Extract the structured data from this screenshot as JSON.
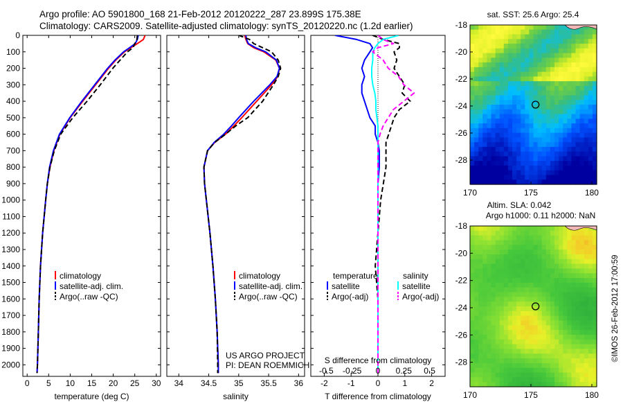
{
  "header": {
    "line1": "Argo profile: AO 5901800_168 21-Feb-2012 20120222_287 23.899S 175.38E",
    "line2": "Climatology: CARS2009. Satellite-adjusted climatology: synTS_20120220.nc (1.2d earlier)"
  },
  "credits": {
    "project": "US ARGO PROJECT",
    "pi": "PI: DEAN ROEMMICH",
    "stamp": "©IMOS 26-Feb-2012 17:00:59"
  },
  "colors": {
    "climatology": "#ff0000",
    "satellite": "#0000ff",
    "argo": "#000000",
    "sal_satellite": "#00ffff",
    "sal_argo": "#ff00ff"
  },
  "chart_data": [
    {
      "type": "line",
      "name": "temperature-profile",
      "xlabel": "temperature (deg C)",
      "ylabel": "",
      "xlim": [
        -1,
        31
      ],
      "ylim": [
        2070,
        0
      ],
      "xticks": [
        "0",
        "5",
        "10",
        "15",
        "20",
        "25",
        "30"
      ],
      "yticks": [
        "0",
        "100",
        "200",
        "300",
        "400",
        "500",
        "600",
        "700",
        "800",
        "900",
        "1000",
        "1100",
        "1200",
        "1300",
        "1400",
        "1500",
        "1600",
        "1700",
        "1800",
        "1900",
        "2000"
      ],
      "legend": [
        "climatology",
        "satellite-adj. clim.",
        "Argo(..raw -QC)"
      ],
      "depth": [
        0,
        25,
        50,
        75,
        100,
        150,
        200,
        300,
        400,
        500,
        600,
        700,
        800,
        900,
        1000,
        1200,
        1400,
        1600,
        1800,
        2000,
        2050
      ],
      "series": [
        {
          "name": "climatology",
          "values": [
            27.4,
            27.0,
            25.6,
            24.1,
            22.6,
            20.6,
            18.9,
            15.9,
            12.9,
            10.0,
            7.6,
            6.2,
            5.3,
            4.7,
            4.3,
            3.6,
            3.1,
            2.8,
            2.6,
            2.4,
            2.3
          ]
        },
        {
          "name": "satellite-adj. clim.",
          "values": [
            25.8,
            25.6,
            25.1,
            23.8,
            22.4,
            20.4,
            18.7,
            15.7,
            12.7,
            9.9,
            7.5,
            6.1,
            5.2,
            4.7,
            4.3,
            3.6,
            3.1,
            2.8,
            2.6,
            2.4,
            2.3
          ]
        },
        {
          "name": "Argo(..raw -QC)",
          "values": [
            25.6,
            25.5,
            25.0,
            24.6,
            23.3,
            21.6,
            19.9,
            17.0,
            13.9,
            10.6,
            7.8,
            6.3,
            5.3,
            4.7,
            4.3,
            3.6,
            3.1,
            2.8,
            2.6,
            2.4,
            2.3
          ]
        }
      ]
    },
    {
      "type": "line",
      "name": "salinity-profile",
      "xlabel": "salinity",
      "xlim": [
        33.8,
        36.1
      ],
      "ylim": [
        2070,
        0
      ],
      "xticks": [
        "34",
        "34.5",
        "35",
        "35.5",
        "36"
      ],
      "legend": [
        "climatology",
        "satellite-adj. clim.",
        "Argo(..raw -QC)"
      ],
      "depth": [
        0,
        25,
        50,
        75,
        100,
        150,
        200,
        250,
        300,
        400,
        500,
        550,
        600,
        650,
        700,
        800,
        900,
        1000,
        1200,
        1400,
        1600,
        1800,
        2000,
        2050
      ],
      "series": [
        {
          "name": "climatology",
          "values": [
            35.1,
            35.12,
            35.15,
            35.25,
            35.42,
            35.62,
            35.68,
            35.65,
            35.55,
            35.3,
            35.05,
            34.92,
            34.78,
            34.6,
            34.48,
            34.42,
            34.43,
            34.46,
            34.52,
            34.57,
            34.61,
            34.64,
            34.66,
            34.66
          ]
        },
        {
          "name": "satellite-adj. clim.",
          "values": [
            35.12,
            35.13,
            35.16,
            35.28,
            35.45,
            35.63,
            35.68,
            35.64,
            35.52,
            35.25,
            35.0,
            34.88,
            34.75,
            34.59,
            34.48,
            34.42,
            34.43,
            34.46,
            34.52,
            34.57,
            34.61,
            34.64,
            34.66,
            34.66
          ]
        },
        {
          "name": "Argo(..raw -QC)",
          "values": [
            35.0,
            35.18,
            35.25,
            35.4,
            35.55,
            35.66,
            35.7,
            35.66,
            35.58,
            35.4,
            35.15,
            34.95,
            34.78,
            34.6,
            34.48,
            34.42,
            34.43,
            34.46,
            34.52,
            34.57,
            34.61,
            34.64,
            34.65,
            34.65
          ]
        }
      ]
    },
    {
      "type": "line",
      "name": "difference-profile",
      "title_upper": "S difference from climatology",
      "xlabel": "T difference from climatology",
      "xlim": [
        -2.5,
        2.5
      ],
      "ylim": [
        2070,
        0
      ],
      "xticks_T": [
        "-2",
        "-1",
        "0",
        "1",
        "2"
      ],
      "xticks_S": [
        "-0.5",
        "-0.25",
        "0",
        "0.25",
        "0.5"
      ],
      "legend_titles": [
        "temperature",
        "salinity"
      ],
      "legend": [
        "satellite",
        "Argo(-adj)",
        "satellite",
        "Argo(-adj)"
      ],
      "depth": [
        0,
        25,
        50,
        75,
        100,
        150,
        200,
        250,
        300,
        350,
        400,
        450,
        500,
        550,
        600,
        650,
        700,
        800,
        900,
        1000,
        1200,
        1400,
        1600,
        1800,
        2000,
        2050
      ],
      "series": [
        {
          "name": "temperature satellite",
          "values": [
            -1.6,
            -0.8,
            -0.3,
            -0.2,
            -0.3,
            -0.5,
            -0.6,
            -0.5,
            -0.6,
            -0.6,
            -0.5,
            -0.4,
            -0.3,
            -0.1,
            -0.1,
            0.0,
            0.05,
            0.05,
            0.0,
            0.0,
            0.0,
            0.0,
            0.0,
            0.0,
            0.0,
            0.0
          ]
        },
        {
          "name": "temperature Argo(-adj)",
          "values": [
            -0.2,
            0.2,
            0.8,
            0.8,
            0.6,
            0.7,
            0.6,
            0.8,
            1.0,
            0.9,
            1.2,
            0.8,
            0.6,
            0.5,
            0.4,
            0.3,
            0.3,
            0.3,
            0.2,
            0.1,
            0.0,
            -0.1,
            0.0,
            0.0,
            0.0,
            0.0
          ]
        },
        {
          "name": "salinity satellite",
          "values": [
            0.2,
            0.05,
            0.0,
            -0.03,
            -0.05,
            -0.05,
            -0.06,
            -0.06,
            -0.05,
            -0.03,
            -0.02,
            -0.02,
            -0.01,
            0.0,
            0.0,
            0.0,
            0.0,
            0.0,
            0.0,
            0.0,
            0.0,
            0.0,
            0.0,
            0.0,
            0.0,
            0.0
          ]
        },
        {
          "name": "salinity Argo(-adj)",
          "values": [
            0.0,
            0.05,
            0.15,
            0.0,
            -0.05,
            0.05,
            0.1,
            0.2,
            0.25,
            0.35,
            0.25,
            0.15,
            0.1,
            0.05,
            0.02,
            0.0,
            0.0,
            0.0,
            0.0,
            0.0,
            0.0,
            0.0,
            0.0,
            0.0,
            0.0,
            0.0
          ]
        }
      ]
    },
    {
      "type": "heatmap",
      "name": "sst-map",
      "title": "sat. SST: 25.6 Argo: 25.4",
      "xticks": [
        "170",
        "175",
        "180"
      ],
      "yticks": [
        "-18",
        "-20",
        "-22",
        "-24",
        "-26",
        "-28"
      ],
      "xlim": [
        170,
        180.4
      ],
      "ylim": [
        -29.8,
        -18
      ],
      "marker": {
        "lon": 175.38,
        "lat": -23.899
      }
    },
    {
      "type": "heatmap",
      "name": "sla-map",
      "title_line1": "Altim. SLA: 0.042",
      "title_line2": "Argo h1000: 0.11 h2000: NaN",
      "xticks": [
        "170",
        "175",
        "180"
      ],
      "yticks": [
        "-18",
        "-20",
        "-22",
        "-24",
        "-26",
        "-28"
      ],
      "xlim": [
        170,
        180.4
      ],
      "ylim": [
        -29.8,
        -18
      ],
      "marker": {
        "lon": 175.38,
        "lat": -23.899
      }
    }
  ]
}
